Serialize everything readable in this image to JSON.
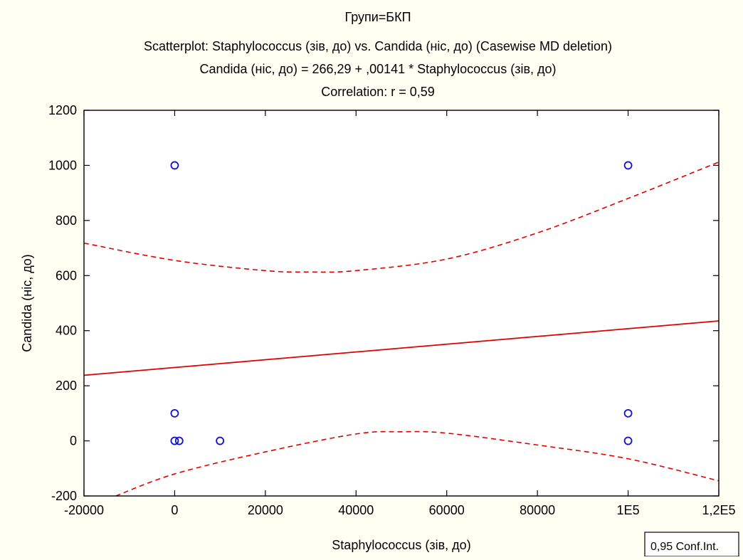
{
  "chart_data": {
    "type": "scatter",
    "title_lines": [
      "Групи=БКП",
      "Scatterplot: Staphylococcus (зів, до) vs. Candida (ніс, до) (Casewise MD deletion)",
      "Candida (ніс, до) = 266,29 + ,00141 * Staphylococcus (зів, до)",
      "Correlation: r = 0,59"
    ],
    "xlabel": "Staphylococcus (зів, до)",
    "ylabel": "Candida (ніс, до)",
    "xlim": [
      -20000,
      120000
    ],
    "ylim": [
      -200,
      1200
    ],
    "x_ticks": [
      -20000,
      0,
      20000,
      40000,
      60000,
      80000,
      100000,
      120000
    ],
    "x_tick_labels": [
      "-20000",
      "0",
      "20000",
      "40000",
      "60000",
      "80000",
      "1E5",
      "1,2E5"
    ],
    "y_ticks": [
      -200,
      0,
      200,
      400,
      600,
      800,
      1000,
      1200
    ],
    "y_tick_labels": [
      "-200",
      "0",
      "200",
      "400",
      "600",
      "800",
      "1000",
      "1200"
    ],
    "points": [
      {
        "x": 0,
        "y": 1000
      },
      {
        "x": 0,
        "y": 100
      },
      {
        "x": 0,
        "y": 0
      },
      {
        "x": 1000,
        "y": 0
      },
      {
        "x": 10000,
        "y": 0
      },
      {
        "x": 100000,
        "y": 1000
      },
      {
        "x": 100000,
        "y": 100
      },
      {
        "x": 100000,
        "y": 0
      }
    ],
    "regression": {
      "intercept": 266.29,
      "slope": 0.00141
    },
    "conf_upper": [
      {
        "x": -20000,
        "y": 718
      },
      {
        "x": 0,
        "y": 655
      },
      {
        "x": 20000,
        "y": 618
      },
      {
        "x": 30000,
        "y": 613
      },
      {
        "x": 40000,
        "y": 618
      },
      {
        "x": 60000,
        "y": 660
      },
      {
        "x": 80000,
        "y": 755
      },
      {
        "x": 100000,
        "y": 880
      },
      {
        "x": 120000,
        "y": 1012
      }
    ],
    "conf_lower": [
      {
        "x": -13000,
        "y": -200
      },
      {
        "x": 0,
        "y": -120
      },
      {
        "x": 20000,
        "y": -40
      },
      {
        "x": 40000,
        "y": 25
      },
      {
        "x": 50000,
        "y": 33
      },
      {
        "x": 60000,
        "y": 28
      },
      {
        "x": 80000,
        "y": -15
      },
      {
        "x": 100000,
        "y": -65
      },
      {
        "x": 120000,
        "y": -145
      }
    ],
    "legend_label": "0,95 Conf.Int.",
    "legend_position": "bottom-right",
    "grid": false,
    "colors": {
      "points": "#1010d0",
      "line": "#e00000",
      "background": "#fffff4"
    }
  }
}
